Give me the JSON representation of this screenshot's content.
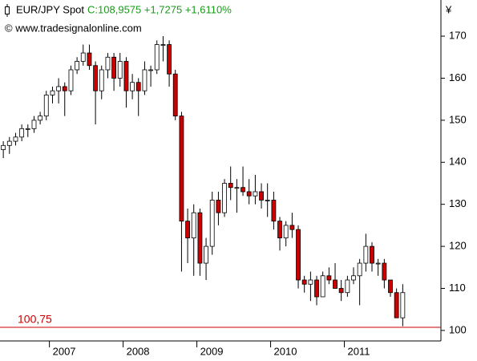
{
  "chart_data": {
    "type": "candlestick",
    "title": "EUR/JPY Spot",
    "subtitle": "C:108,9575 +1,7275 +1,6110%",
    "source": "© www.tradesignalonline.com",
    "y_axis_label": "¥",
    "up_color": "#ffffff",
    "down_color": "#cc0000",
    "outline_color": "#000000",
    "x": [
      2006.375,
      2006.458,
      2006.542,
      2006.625,
      2006.708,
      2006.792,
      2006.875,
      2006.958,
      2007.042,
      2007.125,
      2007.208,
      2007.292,
      2007.375,
      2007.458,
      2007.542,
      2007.625,
      2007.708,
      2007.792,
      2007.875,
      2007.958,
      2008.042,
      2008.125,
      2008.208,
      2008.292,
      2008.375,
      2008.458,
      2008.542,
      2008.625,
      2008.708,
      2008.792,
      2008.875,
      2008.958,
      2009.042,
      2009.125,
      2009.208,
      2009.292,
      2009.375,
      2009.458,
      2009.542,
      2009.625,
      2009.708,
      2009.792,
      2009.875,
      2009.958,
      2010.042,
      2010.125,
      2010.208,
      2010.292,
      2010.375,
      2010.458,
      2010.542,
      2010.625,
      2010.708,
      2010.792,
      2010.875,
      2010.958,
      2011.042,
      2011.125,
      2011.208,
      2011.292,
      2011.375,
      2011.458,
      2011.542,
      2011.625,
      2011.708,
      2011.792
    ],
    "open": [
      143,
      144,
      145,
      146,
      148,
      148,
      150,
      151,
      156,
      157,
      158,
      157,
      162,
      164,
      166,
      163,
      157,
      162,
      165,
      160,
      164,
      157,
      159,
      157,
      162,
      162,
      168,
      168,
      161,
      151,
      126,
      122,
      128,
      116,
      120,
      131,
      128,
      135,
      134,
      134,
      133,
      132,
      133,
      131,
      131,
      126,
      122,
      125,
      124,
      112,
      111,
      112,
      108,
      113,
      112,
      110,
      109,
      112,
      113,
      116,
      120,
      116,
      116,
      112,
      109,
      103
    ],
    "high": [
      145,
      146,
      147,
      149,
      149,
      151,
      152,
      157,
      158,
      160,
      159,
      163,
      165,
      168,
      168,
      164,
      163,
      166,
      166,
      166,
      165,
      161,
      160,
      164,
      163,
      169,
      170,
      169,
      162,
      152,
      129,
      130,
      129,
      122,
      133,
      133,
      136,
      139,
      136,
      139,
      136,
      137,
      135,
      135,
      133,
      127,
      126,
      128,
      125,
      113,
      114,
      113,
      114,
      115,
      116,
      112,
      113,
      115,
      117,
      123,
      121,
      117,
      117,
      112,
      110,
      111
    ],
    "low": [
      141,
      142,
      144,
      145,
      146,
      147,
      149,
      150,
      154,
      154,
      151,
      156,
      161,
      163,
      162,
      149,
      155,
      160,
      157,
      158,
      153,
      155,
      151,
      156,
      158,
      161,
      164,
      158,
      150,
      114,
      116,
      113,
      113,
      112,
      118,
      125,
      127,
      131,
      128,
      132,
      130,
      130,
      129,
      127,
      124,
      119,
      120,
      122,
      110,
      109,
      107,
      106,
      108,
      111,
      110,
      107,
      108,
      111,
      106,
      114,
      114,
      113,
      110,
      108,
      103,
      101
    ],
    "close": [
      144,
      145,
      146,
      148,
      148,
      150,
      151,
      156,
      157,
      158,
      157,
      162,
      164,
      166,
      163,
      157,
      162,
      165,
      160,
      164,
      157,
      159,
      157,
      162,
      162,
      168,
      168,
      161,
      151,
      126,
      122,
      128,
      116,
      120,
      131,
      128,
      135,
      134,
      134,
      133,
      132,
      133,
      131,
      131,
      126,
      122,
      125,
      124,
      112,
      111,
      112,
      108,
      113,
      112,
      110,
      109,
      112,
      113,
      116,
      120,
      116,
      116,
      112,
      109,
      103,
      109
    ],
    "xlim": [
      2006.33,
      2012.31
    ],
    "xticks": [
      2007,
      2008,
      2009,
      2010,
      2011
    ],
    "ylim": [
      97.5,
      178.6
    ],
    "yticks": [
      100,
      110,
      120,
      130,
      140,
      150,
      160,
      170
    ],
    "reference_line": {
      "value": 100.75,
      "label": "100,75",
      "color": "#cc0000"
    }
  }
}
